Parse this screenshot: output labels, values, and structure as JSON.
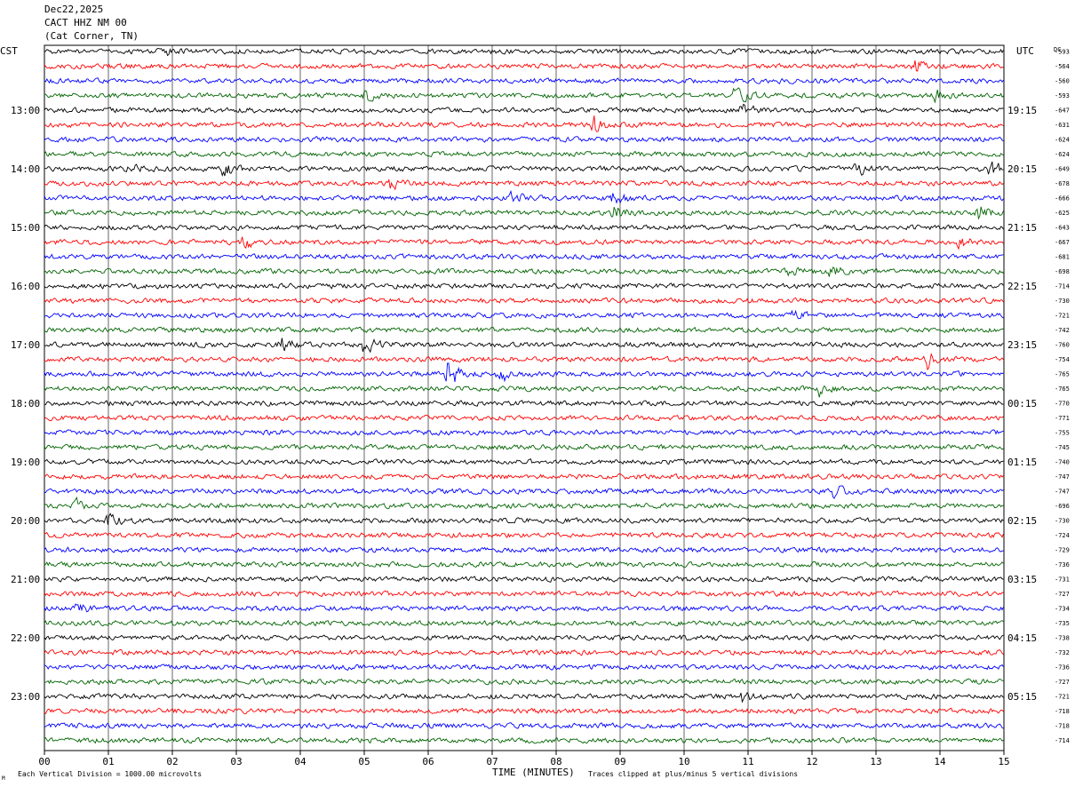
{
  "header": {
    "date": "Dec22,2025",
    "station": "CACT HHZ NM 00",
    "location": "(Cat Corner, TN)"
  },
  "footer": {
    "scale_note": "Each Vertical Division = 1000.00 microvolts",
    "clip_note": "Traces clipped at plus/minus 5 vertical divisions",
    "corner_mark": "M"
  },
  "chart_data": {
    "type": "line",
    "title": "",
    "xlabel": "TIME (MINUTES)",
    "ylabel": "",
    "left_axis_label": "CST",
    "right_axis_label": "UTC",
    "dc_label": "DC",
    "xlim": [
      0,
      15
    ],
    "x_ticks": [
      "00",
      "01",
      "02",
      "03",
      "04",
      "05",
      "06",
      "07",
      "08",
      "09",
      "10",
      "11",
      "12",
      "13",
      "14",
      "15"
    ],
    "grid": true,
    "trace_colors": [
      "#000000",
      "#ff0000",
      "#0000ff",
      "#006400"
    ],
    "row_count": 48,
    "left_hour_labels": [
      {
        "row": 4,
        "label": "13:00"
      },
      {
        "row": 8,
        "label": "14:00"
      },
      {
        "row": 12,
        "label": "15:00"
      },
      {
        "row": 16,
        "label": "16:00"
      },
      {
        "row": 20,
        "label": "17:00"
      },
      {
        "row": 24,
        "label": "18:00"
      },
      {
        "row": 28,
        "label": "19:00"
      },
      {
        "row": 32,
        "label": "20:00"
      },
      {
        "row": 36,
        "label": "21:00"
      },
      {
        "row": 40,
        "label": "22:00"
      },
      {
        "row": 44,
        "label": "23:00"
      }
    ],
    "right_hour_labels": [
      {
        "row": 4,
        "label": "19:15"
      },
      {
        "row": 8,
        "label": "20:15"
      },
      {
        "row": 12,
        "label": "21:15"
      },
      {
        "row": 16,
        "label": "22:15"
      },
      {
        "row": 20,
        "label": "23:15"
      },
      {
        "row": 24,
        "label": "00:15"
      },
      {
        "row": 28,
        "label": "01:15"
      },
      {
        "row": 32,
        "label": "02:15"
      },
      {
        "row": 36,
        "label": "03:15"
      },
      {
        "row": 40,
        "label": "04:15"
      },
      {
        "row": 44,
        "label": "05:15"
      }
    ],
    "dc_offsets": [
      -593,
      -564,
      -560,
      -593,
      -647,
      -631,
      -624,
      -624,
      -649,
      -678,
      -666,
      -625,
      -643,
      -667,
      -681,
      -698,
      -714,
      -730,
      -721,
      -742,
      -760,
      -754,
      -765,
      -765,
      -770,
      -771,
      -755,
      -745,
      -740,
      -747,
      -747,
      -696,
      -730,
      -724,
      -729,
      -736,
      -731,
      -727,
      -734,
      -735,
      -738,
      -732,
      -736,
      -727,
      -721,
      -718,
      -718,
      -714
    ],
    "events": [
      {
        "row": 0,
        "minute": 1.8,
        "amp": 1.6
      },
      {
        "row": 1,
        "minute": 13.6,
        "amp": 1.7
      },
      {
        "row": 3,
        "minute": 5.0,
        "amp": 1.6
      },
      {
        "row": 3,
        "minute": 10.8,
        "amp": 2.6
      },
      {
        "row": 3,
        "minute": 13.9,
        "amp": 2.0
      },
      {
        "row": 4,
        "minute": 10.9,
        "amp": 1.8
      },
      {
        "row": 5,
        "minute": 8.6,
        "amp": 2.4
      },
      {
        "row": 8,
        "minute": 1.3,
        "amp": 1.7
      },
      {
        "row": 8,
        "minute": 2.8,
        "amp": 2.0
      },
      {
        "row": 8,
        "minute": 12.7,
        "amp": 1.7
      },
      {
        "row": 8,
        "minute": 14.8,
        "amp": 3.0
      },
      {
        "row": 9,
        "minute": 5.4,
        "amp": 1.6
      },
      {
        "row": 10,
        "minute": 7.3,
        "amp": 1.6
      },
      {
        "row": 10,
        "minute": 8.9,
        "amp": 1.7
      },
      {
        "row": 11,
        "minute": 8.9,
        "amp": 1.8
      },
      {
        "row": 11,
        "minute": 14.6,
        "amp": 2.0
      },
      {
        "row": 13,
        "minute": 3.1,
        "amp": 2.0
      },
      {
        "row": 13,
        "minute": 14.3,
        "amp": 1.5
      },
      {
        "row": 15,
        "minute": 11.6,
        "amp": 1.7
      },
      {
        "row": 15,
        "minute": 12.3,
        "amp": 1.5
      },
      {
        "row": 18,
        "minute": 11.7,
        "amp": 1.6
      },
      {
        "row": 20,
        "minute": 3.7,
        "amp": 1.7
      },
      {
        "row": 20,
        "minute": 5.0,
        "amp": 2.4
      },
      {
        "row": 21,
        "minute": 13.8,
        "amp": 2.0
      },
      {
        "row": 22,
        "minute": 6.3,
        "amp": 4.5
      },
      {
        "row": 22,
        "minute": 7.1,
        "amp": 3.4
      },
      {
        "row": 23,
        "minute": 12.1,
        "amp": 2.2
      },
      {
        "row": 30,
        "minute": 12.3,
        "amp": 2.0
      },
      {
        "row": 31,
        "minute": 0.5,
        "amp": 1.6
      },
      {
        "row": 32,
        "minute": 1.0,
        "amp": 1.7
      },
      {
        "row": 38,
        "minute": 0.5,
        "amp": 1.4
      },
      {
        "row": 44,
        "minute": 10.9,
        "amp": 1.8
      }
    ]
  }
}
